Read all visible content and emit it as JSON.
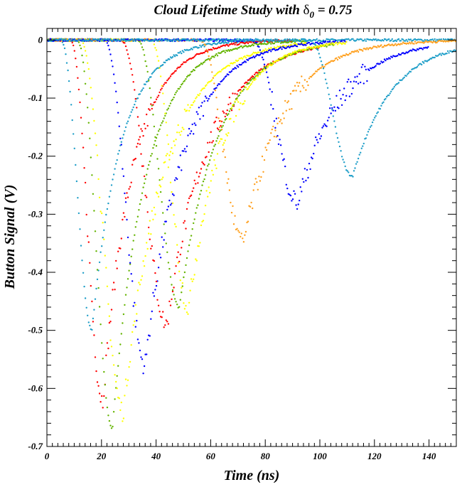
{
  "chart_data": {
    "type": "scatter",
    "title": "Cloud Lifetime Study with δ0 = 0.75",
    "title_main": "Cloud Lifetime Study with ",
    "title_symbol": "δ",
    "title_subscript": "0",
    "title_tail": " = 0.75",
    "xlabel": "Time (ns)",
    "ylabel": "Button Signal (V)",
    "xlim": [
      0,
      150
    ],
    "ylim": [
      -0.7,
      0.02
    ],
    "x_ticks": [
      0,
      20,
      40,
      60,
      80,
      100,
      120,
      140
    ],
    "x_tick_labels": [
      "0",
      "20",
      "40",
      "60",
      "80",
      "100",
      "120",
      "140"
    ],
    "y_ticks": [
      0,
      -0.1,
      -0.2,
      -0.3,
      -0.4,
      -0.5,
      -0.6,
      -0.7
    ],
    "y_tick_labels": [
      "0",
      "-0.1",
      "-0.2",
      "-0.3",
      "-0.4",
      "-0.5",
      "-0.6",
      "-0.7"
    ],
    "grid": false,
    "colors": {
      "red": "#ff0000",
      "orange": "#ffa01e",
      "yellow": "#ffff00",
      "green": "#64b400",
      "blue": "#0000ff",
      "cyan": "#1e9ec8"
    },
    "series": [
      {
        "color": "cyan",
        "start": 5.0,
        "peak_x": 16.5,
        "peak_y": -0.5,
        "end": 150
      },
      {
        "color": "red",
        "start": 8.5,
        "peak_x": 20.5,
        "peak_y": -0.62,
        "end": 90
      },
      {
        "color": "green",
        "start": 11.0,
        "peak_x": 24.0,
        "peak_y": -0.67,
        "end": 95
      },
      {
        "color": "yellow",
        "start": 12.0,
        "peak_x": 28.0,
        "peak_y": -0.64,
        "end": 95
      },
      {
        "color": "blue",
        "start": 21.0,
        "peak_x": 36.0,
        "peak_y": -0.56,
        "end": 110
      },
      {
        "color": "red",
        "start": 27.0,
        "peak_x": 44.0,
        "peak_y": -0.49,
        "end": 100
      },
      {
        "color": "green",
        "start": 33.0,
        "peak_x": 48.5,
        "peak_y": -0.46,
        "end": 105
      },
      {
        "color": "yellow",
        "start": 38.0,
        "peak_x": 52.0,
        "peak_y": -0.46,
        "end": 110
      },
      {
        "color": "orange",
        "start": 56.0,
        "peak_x": 72.0,
        "peak_y": -0.35,
        "end": 150
      },
      {
        "color": "blue",
        "start": 75.0,
        "peak_x": 92.0,
        "peak_y": -0.28,
        "end": 140
      },
      {
        "color": "cyan",
        "start": 96.0,
        "peak_x": 112.0,
        "peak_y": -0.235,
        "end": 150
      }
    ]
  }
}
